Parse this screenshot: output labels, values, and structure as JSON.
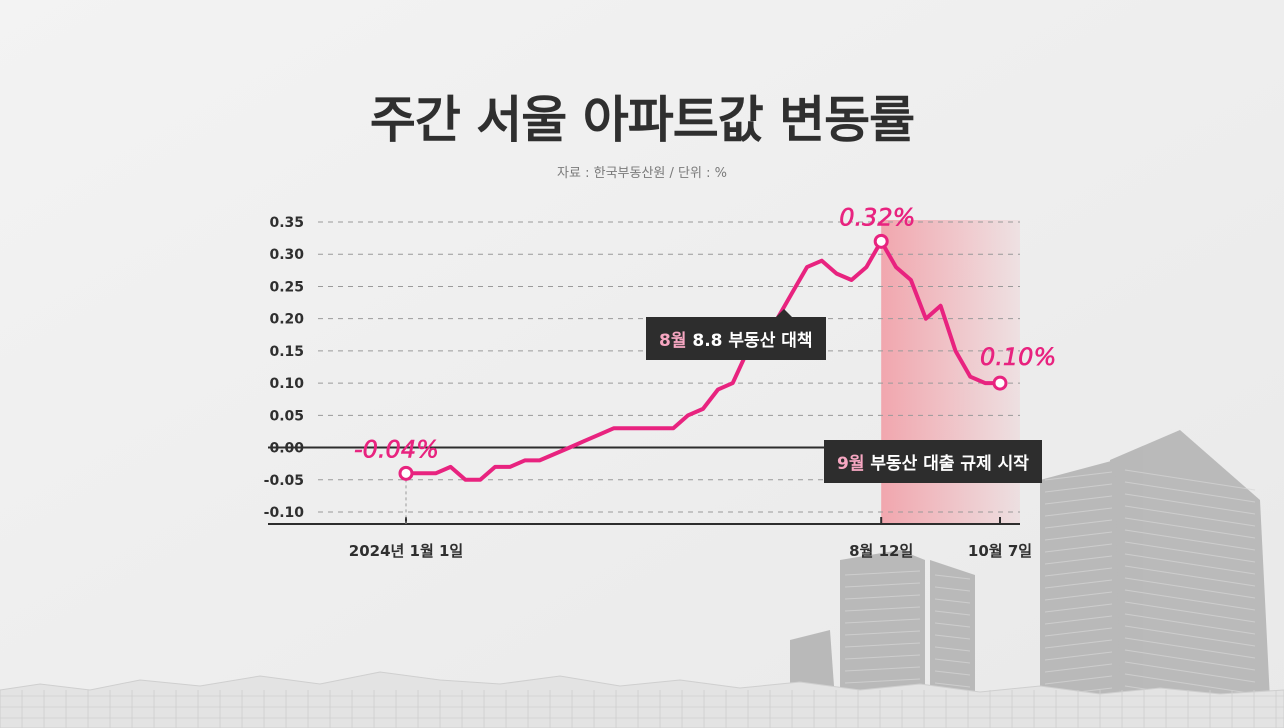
{
  "title": "주간 서울 아파트값 변동률",
  "subtitle": "자료 : 한국부동산원 / 단위 : %",
  "colors": {
    "line": "#e8237f",
    "highlight": "#f2a0a6",
    "axis": "#2d2d2d",
    "text": "#2f2f2f"
  },
  "callouts": [
    {
      "month": "8월",
      "text": " 8.8 부동산 대책"
    },
    {
      "month": "9월",
      "text": " 부동산 대출 규제 시작"
    }
  ],
  "annotations": {
    "start": "-0.04%",
    "peak": "0.32%",
    "end": "0.10%"
  },
  "chart_data": {
    "type": "line",
    "title": "주간 서울 아파트값 변동률",
    "ylim": [
      -0.1,
      0.35
    ],
    "y_ticks": [
      "0.35",
      "0.30",
      "0.25",
      "0.20",
      "0.15",
      "0.10",
      "0.05",
      "0.00",
      "-0.05",
      "-0.10"
    ],
    "x_tick_labels": [
      {
        "index": 0,
        "label": "2024년 1월 1일"
      },
      {
        "index": 32,
        "label": "8월 12일"
      },
      {
        "index": 40,
        "label": "10월 7일"
      }
    ],
    "highlight_range": [
      32,
      40
    ],
    "grid": true,
    "series": [
      {
        "values": [
          -0.04,
          -0.04,
          -0.04,
          -0.03,
          -0.05,
          -0.05,
          -0.03,
          -0.03,
          -0.02,
          -0.02,
          -0.01,
          0.0,
          0.01,
          0.02,
          0.03,
          0.03,
          0.03,
          0.03,
          0.03,
          0.05,
          0.06,
          0.09,
          0.1,
          0.15,
          0.18,
          0.2,
          0.24,
          0.28,
          0.29,
          0.27,
          0.26,
          0.28,
          0.32,
          0.28,
          0.26,
          0.2,
          0.22,
          0.15,
          0.11,
          0.1,
          0.1
        ]
      }
    ]
  }
}
